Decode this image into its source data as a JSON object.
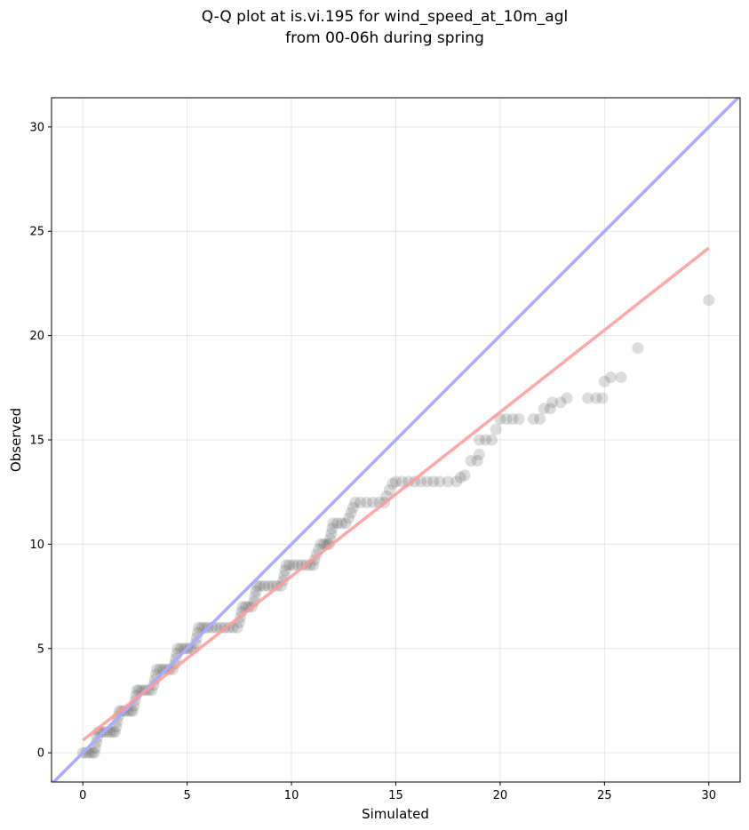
{
  "chart_data": {
    "type": "scatter",
    "title_line1": "Q-Q plot at is.vi.195 for wind_speed_at_10m_agl",
    "title_line2": "from 00-06h during spring",
    "xlabel": "Simulated",
    "ylabel": "Observed",
    "xlim": [
      -1.5,
      31.5
    ],
    "ylim": [
      -1.4,
      31.4
    ],
    "xticks": [
      0,
      5,
      10,
      15,
      20,
      25,
      30
    ],
    "yticks": [
      0,
      5,
      10,
      15,
      20,
      25,
      30
    ],
    "grid": true,
    "reference_line": {
      "slope": 1,
      "intercept": 0,
      "color": "#aaaaff"
    },
    "fit_line": {
      "x": [
        0,
        30
      ],
      "y": [
        0.6,
        24.2
      ],
      "color": "#ff9999"
    },
    "point_color": "#333333",
    "points": [
      [
        0.0,
        0.0
      ],
      [
        0.15,
        0.0
      ],
      [
        0.3,
        0.0
      ],
      [
        0.45,
        0.0
      ],
      [
        0.55,
        0.0
      ],
      [
        0.6,
        0.25
      ],
      [
        0.65,
        0.5
      ],
      [
        0.7,
        0.75
      ],
      [
        0.75,
        1.0
      ],
      [
        0.85,
        1.0
      ],
      [
        1.0,
        1.0
      ],
      [
        1.15,
        1.0
      ],
      [
        1.3,
        1.0
      ],
      [
        1.45,
        1.0
      ],
      [
        1.55,
        1.0
      ],
      [
        1.6,
        1.25
      ],
      [
        1.65,
        1.5
      ],
      [
        1.7,
        1.75
      ],
      [
        1.75,
        2.0
      ],
      [
        1.85,
        2.0
      ],
      [
        2.0,
        2.0
      ],
      [
        2.15,
        2.0
      ],
      [
        2.3,
        2.0
      ],
      [
        2.4,
        2.0
      ],
      [
        2.45,
        2.25
      ],
      [
        2.5,
        2.5
      ],
      [
        2.55,
        2.75
      ],
      [
        2.6,
        3.0
      ],
      [
        2.7,
        3.0
      ],
      [
        2.85,
        3.0
      ],
      [
        3.0,
        3.0
      ],
      [
        3.15,
        3.0
      ],
      [
        3.3,
        3.0
      ],
      [
        3.4,
        3.25
      ],
      [
        3.45,
        3.5
      ],
      [
        3.5,
        3.75
      ],
      [
        3.55,
        4.0
      ],
      [
        3.7,
        4.0
      ],
      [
        3.85,
        4.0
      ],
      [
        4.0,
        4.0
      ],
      [
        4.15,
        4.0
      ],
      [
        4.3,
        4.0
      ],
      [
        4.4,
        4.25
      ],
      [
        4.45,
        4.5
      ],
      [
        4.5,
        4.75
      ],
      [
        4.55,
        5.0
      ],
      [
        4.7,
        5.0
      ],
      [
        4.85,
        5.0
      ],
      [
        5.0,
        5.0
      ],
      [
        5.15,
        5.0
      ],
      [
        5.3,
        5.0
      ],
      [
        5.4,
        5.25
      ],
      [
        5.45,
        5.5
      ],
      [
        5.5,
        5.75
      ],
      [
        5.55,
        6.0
      ],
      [
        5.7,
        6.0
      ],
      [
        5.85,
        6.0
      ],
      [
        6.0,
        6.0
      ],
      [
        6.2,
        6.0
      ],
      [
        6.4,
        6.0
      ],
      [
        6.6,
        6.0
      ],
      [
        6.8,
        6.0
      ],
      [
        7.0,
        6.0
      ],
      [
        7.2,
        6.0
      ],
      [
        7.4,
        6.0
      ],
      [
        7.5,
        6.25
      ],
      [
        7.55,
        6.5
      ],
      [
        7.6,
        6.75
      ],
      [
        7.65,
        7.0
      ],
      [
        7.8,
        7.0
      ],
      [
        7.95,
        7.0
      ],
      [
        8.1,
        7.0
      ],
      [
        8.2,
        7.25
      ],
      [
        8.25,
        7.5
      ],
      [
        8.3,
        7.75
      ],
      [
        8.35,
        8.0
      ],
      [
        8.5,
        8.0
      ],
      [
        8.7,
        8.0
      ],
      [
        8.9,
        8.0
      ],
      [
        9.1,
        8.0
      ],
      [
        9.3,
        8.0
      ],
      [
        9.5,
        8.0
      ],
      [
        9.6,
        8.25
      ],
      [
        9.65,
        8.5
      ],
      [
        9.7,
        8.75
      ],
      [
        9.75,
        9.0
      ],
      [
        9.9,
        9.0
      ],
      [
        10.1,
        9.0
      ],
      [
        10.3,
        9.0
      ],
      [
        10.5,
        9.0
      ],
      [
        10.7,
        9.0
      ],
      [
        10.9,
        9.0
      ],
      [
        11.05,
        9.0
      ],
      [
        11.1,
        9.25
      ],
      [
        11.2,
        9.5
      ],
      [
        11.3,
        9.75
      ],
      [
        11.4,
        10.0
      ],
      [
        11.55,
        10.0
      ],
      [
        11.7,
        10.0
      ],
      [
        11.8,
        10.0
      ],
      [
        11.85,
        10.25
      ],
      [
        11.9,
        10.5
      ],
      [
        11.95,
        10.75
      ],
      [
        12.0,
        11.0
      ],
      [
        12.2,
        11.0
      ],
      [
        12.4,
        11.0
      ],
      [
        12.6,
        11.0
      ],
      [
        12.75,
        11.25
      ],
      [
        12.85,
        11.5
      ],
      [
        12.95,
        11.75
      ],
      [
        13.05,
        12.0
      ],
      [
        13.3,
        12.0
      ],
      [
        13.6,
        12.0
      ],
      [
        13.9,
        12.0
      ],
      [
        14.2,
        12.0
      ],
      [
        14.45,
        12.0
      ],
      [
        14.55,
        12.3
      ],
      [
        14.7,
        12.6
      ],
      [
        14.85,
        12.9
      ],
      [
        15.0,
        13.0
      ],
      [
        15.3,
        13.0
      ],
      [
        15.6,
        13.0
      ],
      [
        15.9,
        13.0
      ],
      [
        16.2,
        13.0
      ],
      [
        16.5,
        13.0
      ],
      [
        16.8,
        13.0
      ],
      [
        17.1,
        13.0
      ],
      [
        17.5,
        13.0
      ],
      [
        17.9,
        13.0
      ],
      [
        18.1,
        13.2
      ],
      [
        18.3,
        13.3
      ],
      [
        18.6,
        14.0
      ],
      [
        18.9,
        14.0
      ],
      [
        19.0,
        14.3
      ],
      [
        19.0,
        15.0
      ],
      [
        19.3,
        15.0
      ],
      [
        19.6,
        15.0
      ],
      [
        19.8,
        15.5
      ],
      [
        20.0,
        16.0
      ],
      [
        20.3,
        16.0
      ],
      [
        20.6,
        16.0
      ],
      [
        20.9,
        16.0
      ],
      [
        21.6,
        16.0
      ],
      [
        21.9,
        16.0
      ],
      [
        22.1,
        16.5
      ],
      [
        22.4,
        16.5
      ],
      [
        22.5,
        16.8
      ],
      [
        22.9,
        16.8
      ],
      [
        23.2,
        17.0
      ],
      [
        24.2,
        17.0
      ],
      [
        24.6,
        17.0
      ],
      [
        24.9,
        17.0
      ],
      [
        25.0,
        17.8
      ],
      [
        25.3,
        18.0
      ],
      [
        25.8,
        18.0
      ],
      [
        26.6,
        19.4
      ],
      [
        30.0,
        21.7
      ]
    ]
  }
}
